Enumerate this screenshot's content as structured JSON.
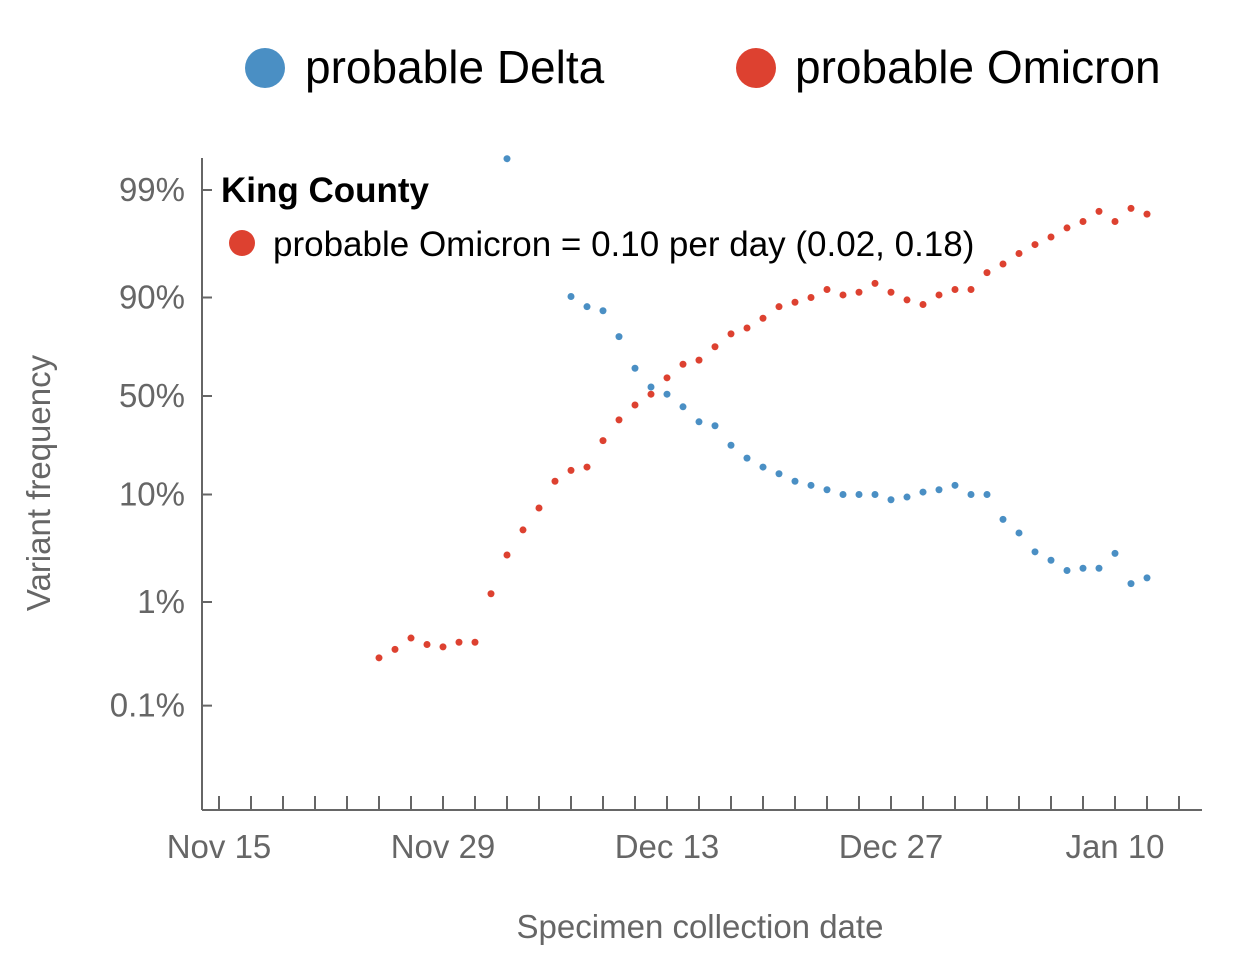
{
  "chart_data": {
    "type": "scatter",
    "title": "King County",
    "xlabel": "Specimen collection date",
    "ylabel": "Variant frequency",
    "x_axis": {
      "ticks": [
        "Nov 15",
        "Nov 29",
        "Dec 13",
        "Dec 27",
        "Jan 10"
      ],
      "range": [
        "2021-11-14",
        "2022-01-14"
      ]
    },
    "y_axis": {
      "scale": "logit",
      "ticks": [
        "99%",
        "90%",
        "50%",
        "10%",
        "1%",
        "0.1%"
      ],
      "tick_values": [
        0.99,
        0.9,
        0.5,
        0.1,
        0.01,
        0.001
      ]
    },
    "legend": {
      "position": "top",
      "items": [
        {
          "label": "probable Delta",
          "color": "#4a8fc4"
        },
        {
          "label": "probable Omicron",
          "color": "#dd4130"
        }
      ]
    },
    "annotation": {
      "text": "probable Omicron = 0.10 per day (0.02, 0.18)",
      "color": "#dd4130"
    },
    "series": [
      {
        "name": "probable Delta",
        "color": "#4a8fc4",
        "x": [
          "2021-12-03",
          "2021-12-07",
          "2021-12-08",
          "2021-12-09",
          "2021-12-10",
          "2021-12-11",
          "2021-12-12",
          "2021-12-13",
          "2021-12-14",
          "2021-12-15",
          "2021-12-16",
          "2021-12-17",
          "2021-12-18",
          "2021-12-19",
          "2021-12-20",
          "2021-12-21",
          "2021-12-22",
          "2021-12-23",
          "2021-12-24",
          "2021-12-25",
          "2021-12-26",
          "2021-12-27",
          "2021-12-28",
          "2021-12-29",
          "2021-12-30",
          "2021-12-31",
          "2022-01-01",
          "2022-01-02",
          "2022-01-03",
          "2022-01-04",
          "2022-01-05",
          "2022-01-06",
          "2022-01-07",
          "2022-01-08",
          "2022-01-09",
          "2022-01-10",
          "2022-01-11",
          "2022-01-12"
        ],
        "y": [
          0.995,
          0.902,
          0.88,
          0.87,
          0.79,
          0.65,
          0.55,
          0.51,
          0.44,
          0.36,
          0.34,
          0.25,
          0.2,
          0.17,
          0.15,
          0.13,
          0.12,
          0.11,
          0.1,
          0.1,
          0.1,
          0.09,
          0.095,
          0.105,
          0.11,
          0.12,
          0.1,
          0.1,
          0.06,
          0.045,
          0.03,
          0.025,
          0.02,
          0.021,
          0.021,
          0.029,
          0.015,
          0.017
        ]
      },
      {
        "name": "probable Omicron",
        "color": "#dd4130",
        "x": [
          "2021-11-25",
          "2021-11-26",
          "2021-11-27",
          "2021-11-28",
          "2021-11-29",
          "2021-11-30",
          "2021-12-01",
          "2021-12-02",
          "2021-12-03",
          "2021-12-04",
          "2021-12-05",
          "2021-12-06",
          "2021-12-07",
          "2021-12-08",
          "2021-12-09",
          "2021-12-10",
          "2021-12-11",
          "2021-12-12",
          "2021-12-13",
          "2021-12-14",
          "2021-12-15",
          "2021-12-16",
          "2021-12-17",
          "2021-12-18",
          "2021-12-19",
          "2021-12-20",
          "2021-12-21",
          "2021-12-22",
          "2021-12-23",
          "2021-12-24",
          "2021-12-25",
          "2021-12-26",
          "2021-12-27",
          "2021-12-28",
          "2021-12-29",
          "2021-12-30",
          "2021-12-31",
          "2022-01-01",
          "2022-01-02",
          "2022-01-03",
          "2022-01-04",
          "2022-01-05",
          "2022-01-06",
          "2022-01-07",
          "2022-01-08",
          "2022-01-09",
          "2022-01-10",
          "2022-01-11",
          "2022-01-12"
        ],
        "y": [
          0.0029,
          0.0035,
          0.0045,
          0.0039,
          0.0037,
          0.0041,
          0.0041,
          0.012,
          0.028,
          0.048,
          0.076,
          0.13,
          0.16,
          0.17,
          0.27,
          0.37,
          0.45,
          0.51,
          0.6,
          0.67,
          0.69,
          0.75,
          0.8,
          0.82,
          0.85,
          0.88,
          0.89,
          0.9,
          0.915,
          0.905,
          0.91,
          0.925,
          0.91,
          0.895,
          0.885,
          0.905,
          0.915,
          0.915,
          0.94,
          0.95,
          0.96,
          0.967,
          0.972,
          0.977,
          0.98,
          0.984,
          0.98,
          0.985,
          0.983
        ]
      }
    ]
  }
}
